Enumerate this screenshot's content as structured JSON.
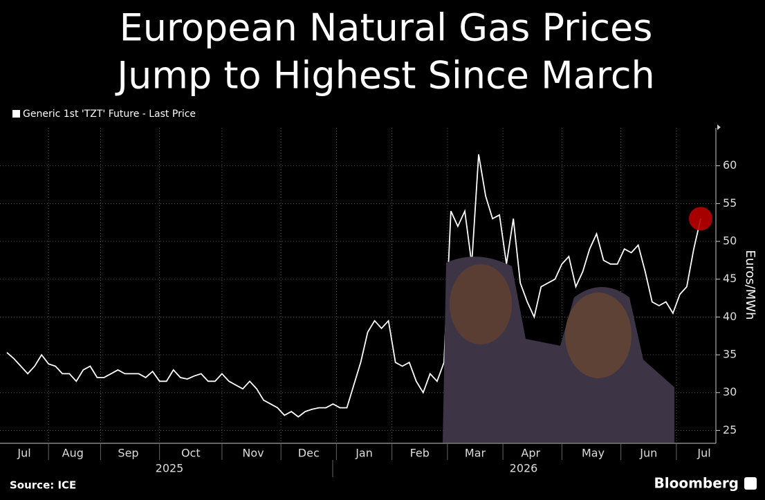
{
  "chart_data": {
    "type": "line",
    "title": [
      "European Natural Gas Prices",
      "Jump to Highest Since March"
    ],
    "y_label": "Euros/MWh",
    "source": "Source: ICE",
    "brand": "Bloomberg",
    "categories": [
      null,
      null,
      "Jul",
      null,
      null,
      null,
      null,
      null,
      null,
      "Aug",
      null,
      null,
      null,
      null,
      null,
      null,
      null,
      "Sep",
      null,
      null,
      null,
      null,
      null,
      null,
      null,
      null,
      "Oct",
      null,
      null,
      null,
      null,
      null,
      null,
      null,
      null,
      "Nov",
      null,
      null,
      null,
      null,
      null,
      null,
      null,
      "Dec",
      null,
      null,
      null,
      null,
      null,
      null,
      null,
      "Jan",
      null,
      null,
      null,
      null,
      null,
      null,
      null,
      "Feb",
      null,
      null,
      null,
      null,
      null,
      null,
      null,
      "Mar",
      null,
      null,
      null,
      null,
      null,
      null,
      null,
      "Apr",
      null,
      null,
      null,
      null,
      null,
      null,
      null,
      null,
      "May",
      null,
      null,
      null,
      null,
      null,
      null,
      null,
      "Jun",
      null,
      null,
      null,
      null,
      null,
      null,
      null,
      "Jul"
    ],
    "year_labels": [
      "2025",
      "2026"
    ],
    "series": [
      {
        "name": "Generic 1st 'TZT' Future - Last Price",
        "color": "#ffffff",
        "values": [
          35.3,
          34.5,
          33.5,
          32.5,
          33.5,
          35,
          33.8,
          33.5,
          32.5,
          32.5,
          31.5,
          33,
          33.5,
          32,
          32,
          32.5,
          33,
          32.5,
          32.5,
          32.5,
          32,
          32.8,
          31.5,
          31.5,
          33,
          32,
          31.8,
          32.2,
          32.5,
          31.5,
          31.5,
          32.5,
          31.5,
          31,
          30.5,
          31.5,
          30.5,
          29,
          28.5,
          28,
          27,
          27.5,
          26.8,
          27.5,
          27.8,
          28,
          28,
          28.5,
          28,
          28,
          31,
          34,
          38,
          39.5,
          38.5,
          39.5,
          34,
          33.5,
          34,
          31.5,
          30,
          32.5,
          31.5,
          34,
          54,
          52,
          54,
          47,
          61.5,
          56,
          53,
          53.5,
          47,
          53,
          44.5,
          42,
          40,
          44,
          44.5,
          45,
          47,
          48,
          44,
          46,
          49,
          51,
          47.5,
          47,
          47,
          49,
          48.5,
          49.5,
          46,
          42,
          41.5,
          42,
          40.5,
          43,
          44,
          49,
          53
        ]
      }
    ],
    "end_marker_color": "#b80000",
    "ylim": [
      23.3,
      65
    ],
    "yticks": [
      25,
      30,
      35,
      40,
      45,
      50,
      55,
      60
    ],
    "grid": true
  }
}
